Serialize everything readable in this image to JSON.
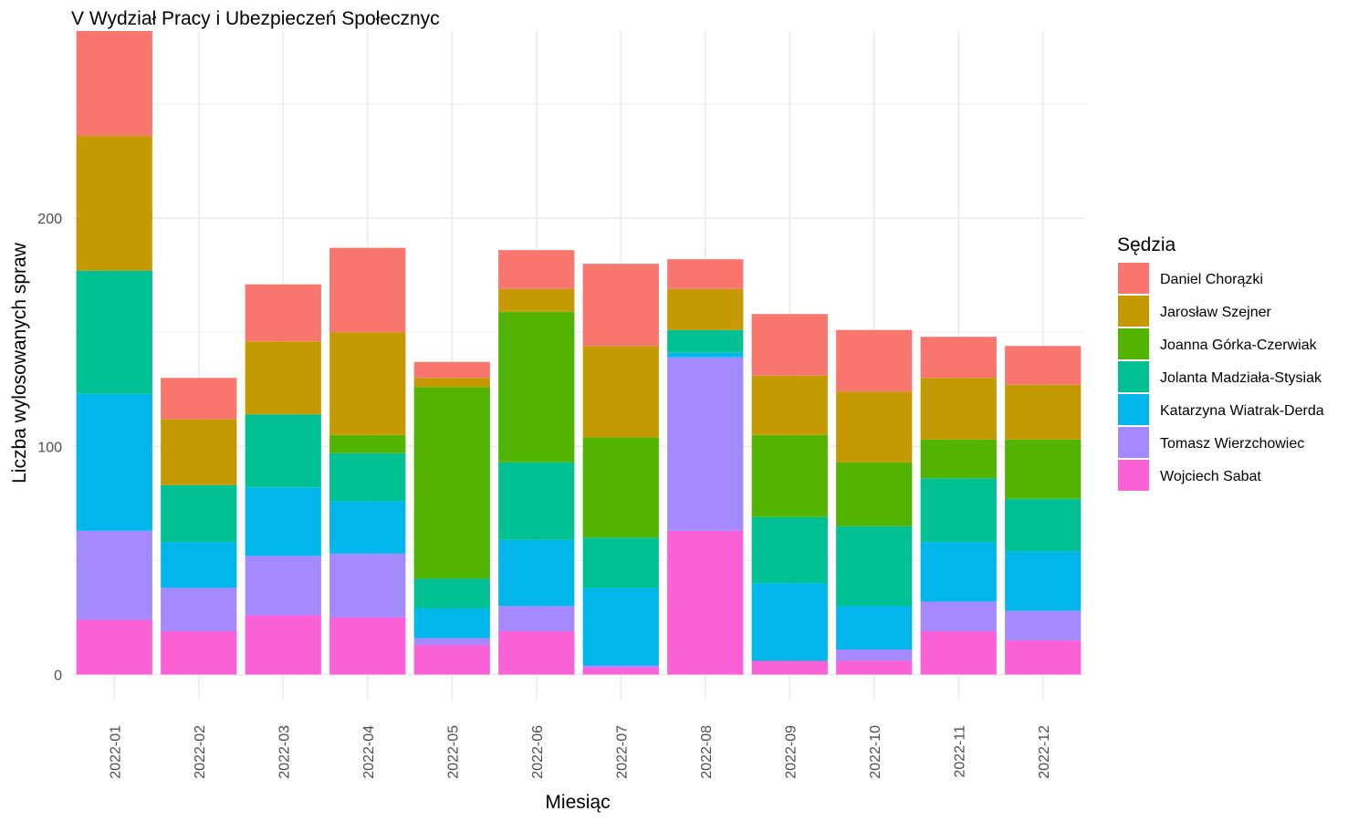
{
  "chart_data": {
    "type": "bar",
    "stacked": true,
    "title": "V Wydział Pracy i Ubezpieczeń Społecznyc",
    "xlabel": "Miesiąc",
    "ylabel": "Liczba wylosowanych spraw",
    "ylim": [
      -11,
      282
    ],
    "yticks": [
      0,
      100,
      200
    ],
    "grid": true,
    "legend": {
      "title": "Sędzia",
      "position": "right"
    },
    "categories": [
      "2022-01",
      "2022-02",
      "2022-03",
      "2022-04",
      "2022-05",
      "2022-06",
      "2022-07",
      "2022-08",
      "2022-09",
      "2022-10",
      "2022-11",
      "2022-12"
    ],
    "series": [
      {
        "name": "Daniel Chorązki",
        "color": "#F8766D",
        "values": [
          46,
          18,
          25,
          37,
          7,
          17,
          36,
          13,
          27,
          27,
          18,
          17
        ]
      },
      {
        "name": "Jarosław Szejner",
        "color": "#C49A00",
        "values": [
          59,
          29,
          32,
          45,
          4,
          10,
          40,
          18,
          26,
          31,
          27,
          24
        ]
      },
      {
        "name": "Joanna Górka-Czerwiak",
        "color": "#53B400",
        "values": [
          0,
          0,
          0,
          8,
          84,
          66,
          44,
          0,
          36,
          28,
          17,
          26
        ]
      },
      {
        "name": "Jolanta Madziała-Stysiak",
        "color": "#00C094",
        "values": [
          54,
          25,
          32,
          21,
          13,
          34,
          22,
          10,
          29,
          35,
          28,
          23
        ]
      },
      {
        "name": "Katarzyna Wiatrak-Derda",
        "color": "#00B6EB",
        "values": [
          60,
          20,
          30,
          23,
          13,
          29,
          34,
          2,
          34,
          19,
          26,
          26
        ]
      },
      {
        "name": "Tomasz Wierzchowiec",
        "color": "#A58AFF",
        "values": [
          39,
          19,
          26,
          28,
          3,
          11,
          1,
          76,
          0,
          5,
          13,
          13
        ]
      },
      {
        "name": "Wojciech Sabat",
        "color": "#FB61D7",
        "values": [
          24,
          19,
          26,
          25,
          13,
          19,
          3,
          63,
          6,
          6,
          19,
          15
        ]
      }
    ]
  }
}
